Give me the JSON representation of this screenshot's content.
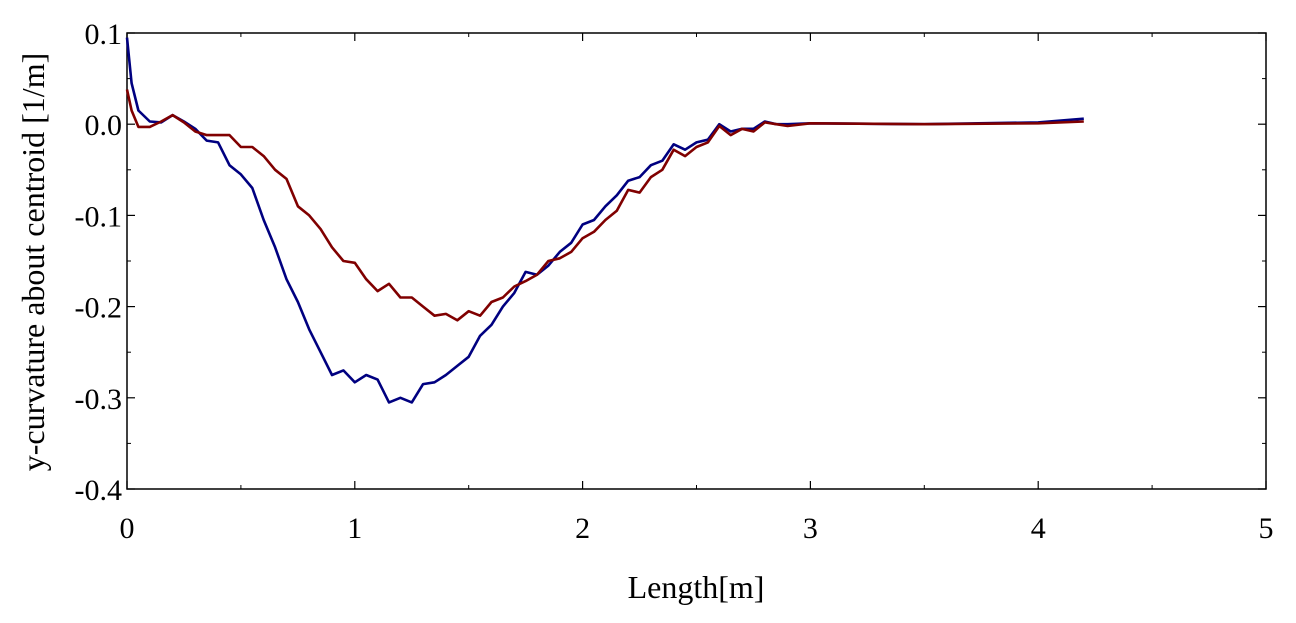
{
  "chart_data": {
    "type": "line",
    "title": "",
    "xlabel": "Length[m]",
    "ylabel": "y-curvature about centroid [1/m]",
    "xlim": [
      0,
      5
    ],
    "ylim": [
      -0.4,
      0.1
    ],
    "x_ticks": [
      "0",
      "1",
      "2",
      "3",
      "4",
      "5"
    ],
    "y_ticks": [
      "-0.4",
      "-0.3",
      "-0.2",
      "-0.1",
      "0.0",
      "0.1"
    ],
    "grid": false,
    "legend": "none",
    "series": [
      {
        "color": "#000080",
        "points": [
          [
            0.0,
            0.095
          ],
          [
            0.02,
            0.045
          ],
          [
            0.05,
            0.015
          ],
          [
            0.1,
            0.003
          ],
          [
            0.15,
            0.002
          ],
          [
            0.2,
            0.01
          ],
          [
            0.25,
            0.003
          ],
          [
            0.3,
            -0.005
          ],
          [
            0.35,
            -0.018
          ],
          [
            0.4,
            -0.02
          ],
          [
            0.45,
            -0.045
          ],
          [
            0.5,
            -0.055
          ],
          [
            0.55,
            -0.07
          ],
          [
            0.6,
            -0.105
          ],
          [
            0.65,
            -0.135
          ],
          [
            0.7,
            -0.17
          ],
          [
            0.75,
            -0.195
          ],
          [
            0.8,
            -0.225
          ],
          [
            0.85,
            -0.25
          ],
          [
            0.9,
            -0.275
          ],
          [
            0.95,
            -0.27
          ],
          [
            1.0,
            -0.283
          ],
          [
            1.05,
            -0.275
          ],
          [
            1.1,
            -0.28
          ],
          [
            1.15,
            -0.305
          ],
          [
            1.2,
            -0.3
          ],
          [
            1.25,
            -0.305
          ],
          [
            1.3,
            -0.285
          ],
          [
            1.35,
            -0.283
          ],
          [
            1.4,
            -0.275
          ],
          [
            1.45,
            -0.265
          ],
          [
            1.5,
            -0.255
          ],
          [
            1.55,
            -0.232
          ],
          [
            1.6,
            -0.22
          ],
          [
            1.65,
            -0.2
          ],
          [
            1.7,
            -0.185
          ],
          [
            1.75,
            -0.162
          ],
          [
            1.8,
            -0.165
          ],
          [
            1.85,
            -0.155
          ],
          [
            1.9,
            -0.14
          ],
          [
            1.95,
            -0.13
          ],
          [
            2.0,
            -0.11
          ],
          [
            2.05,
            -0.105
          ],
          [
            2.1,
            -0.09
          ],
          [
            2.15,
            -0.078
          ],
          [
            2.2,
            -0.062
          ],
          [
            2.25,
            -0.058
          ],
          [
            2.3,
            -0.045
          ],
          [
            2.35,
            -0.04
          ],
          [
            2.4,
            -0.022
          ],
          [
            2.45,
            -0.028
          ],
          [
            2.5,
            -0.02
          ],
          [
            2.55,
            -0.017
          ],
          [
            2.6,
            0.0
          ],
          [
            2.65,
            -0.008
          ],
          [
            2.7,
            -0.005
          ],
          [
            2.75,
            -0.005
          ],
          [
            2.8,
            0.003
          ],
          [
            2.85,
            0.0
          ],
          [
            2.9,
            0.0
          ],
          [
            3.0,
            0.001
          ],
          [
            3.5,
            0.0
          ],
          [
            4.0,
            0.002
          ],
          [
            4.2,
            0.006
          ]
        ]
      },
      {
        "color": "#800000",
        "points": [
          [
            0.0,
            0.038
          ],
          [
            0.02,
            0.015
          ],
          [
            0.05,
            -0.003
          ],
          [
            0.1,
            -0.003
          ],
          [
            0.15,
            0.003
          ],
          [
            0.2,
            0.01
          ],
          [
            0.25,
            0.002
          ],
          [
            0.3,
            -0.008
          ],
          [
            0.35,
            -0.012
          ],
          [
            0.4,
            -0.012
          ],
          [
            0.45,
            -0.012
          ],
          [
            0.5,
            -0.025
          ],
          [
            0.55,
            -0.025
          ],
          [
            0.6,
            -0.035
          ],
          [
            0.65,
            -0.05
          ],
          [
            0.7,
            -0.06
          ],
          [
            0.75,
            -0.09
          ],
          [
            0.8,
            -0.1
          ],
          [
            0.85,
            -0.115
          ],
          [
            0.9,
            -0.135
          ],
          [
            0.95,
            -0.15
          ],
          [
            1.0,
            -0.152
          ],
          [
            1.05,
            -0.17
          ],
          [
            1.1,
            -0.183
          ],
          [
            1.15,
            -0.175
          ],
          [
            1.2,
            -0.19
          ],
          [
            1.25,
            -0.19
          ],
          [
            1.3,
            -0.2
          ],
          [
            1.35,
            -0.21
          ],
          [
            1.4,
            -0.208
          ],
          [
            1.45,
            -0.215
          ],
          [
            1.5,
            -0.205
          ],
          [
            1.55,
            -0.21
          ],
          [
            1.6,
            -0.195
          ],
          [
            1.65,
            -0.19
          ],
          [
            1.7,
            -0.178
          ],
          [
            1.75,
            -0.172
          ],
          [
            1.8,
            -0.165
          ],
          [
            1.85,
            -0.15
          ],
          [
            1.9,
            -0.147
          ],
          [
            1.95,
            -0.14
          ],
          [
            2.0,
            -0.125
          ],
          [
            2.05,
            -0.118
          ],
          [
            2.1,
            -0.105
          ],
          [
            2.15,
            -0.095
          ],
          [
            2.2,
            -0.072
          ],
          [
            2.25,
            -0.075
          ],
          [
            2.3,
            -0.058
          ],
          [
            2.35,
            -0.05
          ],
          [
            2.4,
            -0.028
          ],
          [
            2.45,
            -0.035
          ],
          [
            2.5,
            -0.025
          ],
          [
            2.55,
            -0.02
          ],
          [
            2.6,
            -0.002
          ],
          [
            2.65,
            -0.012
          ],
          [
            2.7,
            -0.005
          ],
          [
            2.75,
            -0.008
          ],
          [
            2.8,
            0.002
          ],
          [
            2.85,
            0.0
          ],
          [
            2.9,
            -0.002
          ],
          [
            3.0,
            0.001
          ],
          [
            3.5,
            0.0
          ],
          [
            4.0,
            0.001
          ],
          [
            4.2,
            0.003
          ]
        ]
      }
    ]
  }
}
